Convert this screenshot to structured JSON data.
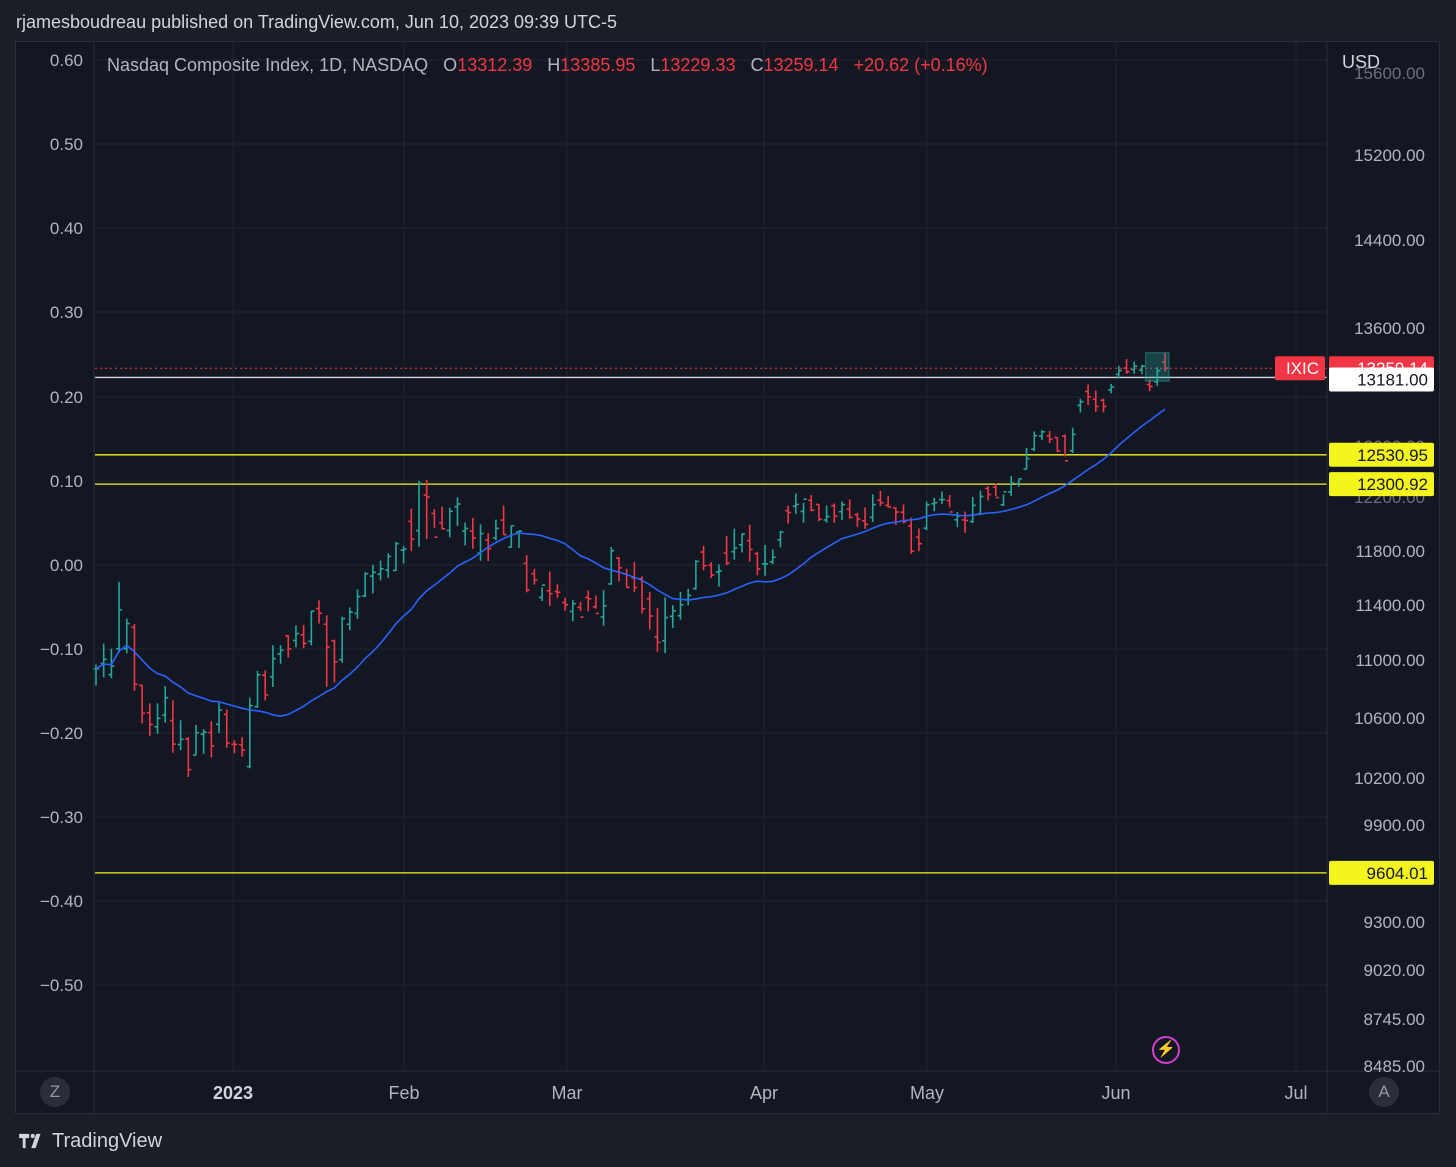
{
  "publisher_line": "rjamesboudreau published on TradingView.com, Jun 10, 2023 09:39 UTC-5",
  "brand": "TradingView",
  "header": {
    "symbol": "Nasdaq Composite Index, 1D, NASDAQ",
    "o_label": "O",
    "o_value": "13312.39",
    "h_label": "H",
    "h_value": "13385.95",
    "l_label": "L",
    "l_value": "13229.33",
    "c_label": "C",
    "c_value": "13259.14",
    "change": "+20.62 (+0.16%)"
  },
  "currency": "USD",
  "corner_left": "Z",
  "corner_right": "A",
  "colors": {
    "up": "#26a69a",
    "down": "#f23645",
    "ma": "#2962ff",
    "level": "#f5f51e",
    "grid": "#1f2430",
    "background": "#131722"
  },
  "chart_data": {
    "type": "ohlc",
    "title": "Nasdaq Composite Index, 1D, NASDAQ",
    "x_ticks": [
      {
        "label": "2023",
        "bold": true
      },
      {
        "label": "Feb"
      },
      {
        "label": "Mar"
      },
      {
        "label": "Apr"
      },
      {
        "label": "May"
      },
      {
        "label": "Jun"
      },
      {
        "label": "Jul"
      }
    ],
    "right_axis": {
      "ticks": [
        "15200.00",
        "14400.00",
        "13600.00",
        "11800.00",
        "11400.00",
        "11000.00",
        "10600.00",
        "10200.00",
        "9900.00",
        "9300.00",
        "9020.00",
        "8745.00",
        "8485.00"
      ],
      "partial_ticks": [
        "15600.00",
        "12600.00",
        "12200.00"
      ]
    },
    "left_axis": {
      "ticks": [
        "0.60",
        "0.50",
        "0.40",
        "0.30",
        "0.20",
        "0.10",
        "0.00",
        "−0.10",
        "−0.20",
        "−0.30",
        "−0.40",
        "−0.50"
      ]
    },
    "last_price": {
      "symbol": "IXIC",
      "value": "13259.14"
    },
    "levels": [
      {
        "value": "13181.00",
        "style": "white"
      },
      {
        "value": "12530.95",
        "style": "yellow"
      },
      {
        "value": "12300.92",
        "style": "yellow"
      },
      {
        "value": "9604.01",
        "style": "yellow"
      }
    ],
    "ohlc_series": [
      [
        10939,
        10969,
        10823,
        10939
      ],
      [
        10976,
        11120,
        10881,
        11005
      ],
      [
        10899,
        11082,
        10874,
        10958
      ],
      [
        11082,
        11571,
        11054,
        11365
      ],
      [
        11082,
        11301,
        11049,
        11265
      ],
      [
        11238,
        11262,
        10787,
        10832
      ],
      [
        10826,
        10827,
        10564,
        10633
      ],
      [
        10637,
        10701,
        10481,
        10557
      ],
      [
        10542,
        10701,
        10495,
        10598
      ],
      [
        10620,
        10819,
        10570,
        10740
      ],
      [
        10583,
        10722,
        10368,
        10426
      ],
      [
        10423,
        10585,
        10385,
        10458
      ],
      [
        10461,
        10472,
        10207,
        10256
      ],
      [
        10353,
        10554,
        10352,
        10502
      ],
      [
        10492,
        10525,
        10362,
        10505
      ],
      [
        10503,
        10579,
        10337,
        10414
      ],
      [
        10558,
        10705,
        10500,
        10654
      ],
      [
        10625,
        10658,
        10402,
        10433
      ],
      [
        10425,
        10452,
        10365,
        10424
      ],
      [
        10422,
        10472,
        10342,
        10386
      ],
      [
        10276,
        10741,
        10265,
        10685
      ],
      [
        10678,
        10925,
        10670,
        10898
      ],
      [
        10895,
        10928,
        10721,
        10759
      ],
      [
        10884,
        11108,
        10814,
        11010
      ],
      [
        11044,
        11108,
        10974,
        11071
      ],
      [
        11176,
        11182,
        11017,
        11081
      ],
      [
        11142,
        11251,
        11092,
        11192
      ],
      [
        11183,
        11255,
        11085,
        11121
      ],
      [
        11136,
        11358,
        11106,
        11355
      ],
      [
        11374,
        11435,
        11265,
        11340
      ],
      [
        11260,
        11325,
        10815,
        11095
      ],
      [
        11140,
        11148,
        10844,
        10987
      ],
      [
        11003,
        11315,
        10981,
        11301
      ],
      [
        11260,
        11382,
        11217,
        11349
      ],
      [
        11339,
        11516,
        11299,
        11462
      ],
      [
        11467,
        11643,
        11458,
        11632
      ],
      [
        11614,
        11698,
        11486,
        11642
      ],
      [
        11628,
        11729,
        11583,
        11668
      ],
      [
        11659,
        11783,
        11602,
        11760
      ],
      [
        11656,
        11866,
        11653,
        11854
      ],
      [
        11806,
        11836,
        11708,
        11814
      ],
      [
        12019,
        12113,
        11799,
        11888
      ],
      [
        11951,
        12327,
        11832,
        12306
      ],
      [
        12215,
        12332,
        11889,
        12201
      ],
      [
        12078,
        12110,
        11970,
        11902
      ],
      [
        12009,
        12129,
        11960,
        11965
      ],
      [
        11952,
        12121,
        11901,
        12094
      ],
      [
        12127,
        12197,
        11985,
        12148
      ],
      [
        11947,
        12011,
        11842,
        11967
      ],
      [
        11948,
        12045,
        11816,
        11895
      ],
      [
        11785,
        11998,
        11728,
        11929
      ],
      [
        11881,
        11932,
        11725,
        11818
      ],
      [
        11898,
        12032,
        11880,
        11967
      ],
      [
        12029,
        12137,
        11922,
        11921
      ],
      [
        11829,
        11990,
        11825,
        11987
      ],
      [
        11939,
        11952,
        11823,
        11948
      ],
      [
        11708,
        11770,
        11494,
        11510
      ],
      [
        11632,
        11667,
        11551,
        11587
      ],
      [
        11456,
        11530,
        11429,
        11547
      ],
      [
        11506,
        11648,
        11393,
        11484
      ],
      [
        11499,
        11553,
        11452,
        11494
      ],
      [
        11418,
        11455,
        11358,
        11402
      ],
      [
        11353,
        11436,
        11283,
        11410
      ],
      [
        11383,
        11422,
        11356,
        11312
      ],
      [
        11456,
        11508,
        11353,
        11446
      ],
      [
        11387,
        11470,
        11373,
        11339
      ],
      [
        11313,
        11509,
        11250,
        11394
      ],
      [
        11556,
        11830,
        11550,
        11802
      ],
      [
        11747,
        11754,
        11575,
        11676
      ],
      [
        11630,
        11669,
        11529,
        11530
      ],
      [
        11601,
        11716,
        11496,
        11530
      ],
      [
        11594,
        11612,
        11338,
        11372
      ],
      [
        11446,
        11496,
        11222,
        11320
      ],
      [
        11167,
        11377,
        11059,
        11129
      ],
      [
        11140,
        11456,
        11051,
        11309
      ],
      [
        11318,
        11399,
        11234,
        11357
      ],
      [
        11322,
        11497,
        11293,
        11401
      ],
      [
        11440,
        11519,
        11397,
        11471
      ],
      [
        11521,
        11731,
        11513,
        11723
      ],
      [
        11792,
        11838,
        11657,
        11691
      ],
      [
        11695,
        11717,
        11599,
        11623
      ],
      [
        11644,
        11701,
        11536,
        11652
      ],
      [
        11785,
        11912,
        11696,
        11711
      ],
      [
        11795,
        11965,
        11736,
        11822
      ],
      [
        11846,
        11930,
        11789,
        11927
      ],
      [
        11876,
        11996,
        11722,
        11812
      ],
      [
        11780,
        11793,
        11620,
        11667
      ],
      [
        11705,
        11845,
        11617,
        11705
      ],
      [
        11719,
        11813,
        11702,
        11754
      ],
      [
        11883,
        11949,
        11827,
        11940
      ],
      [
        12099,
        12137,
        12003,
        12085
      ],
      [
        12131,
        12227,
        12075,
        12145
      ],
      [
        12093,
        12157,
        12011,
        12184
      ],
      [
        12175,
        12215,
        12094,
        12102
      ],
      [
        12145,
        12146,
        12021,
        12036
      ],
      [
        12030,
        12137,
        12010,
        12055
      ],
      [
        12136,
        12152,
        12008,
        12059
      ],
      [
        12091,
        12167,
        12028,
        12144
      ],
      [
        12110,
        12183,
        12041,
        12049
      ],
      [
        12070,
        12082,
        11980,
        12037
      ],
      [
        12024,
        12123,
        11964,
        11997
      ],
      [
        12049,
        12221,
        12015,
        12144
      ],
      [
        12176,
        12248,
        12132,
        12157
      ],
      [
        12138,
        12208,
        12123,
        12126
      ],
      [
        12118,
        12124,
        11993,
        12088
      ],
      [
        12087,
        12145,
        12004,
        12017
      ],
      [
        11985,
        12047,
        11779,
        11799
      ],
      [
        11902,
        11967,
        11798,
        11854
      ],
      [
        11969,
        12166,
        11954,
        12142
      ],
      [
        12150,
        12194,
        12094,
        12158
      ],
      [
        12181,
        12243,
        12148,
        12181
      ],
      [
        12173,
        12216,
        12123,
        12089
      ],
      [
        12031,
        12089,
        11976,
        12061
      ],
      [
        12031,
        12092,
        11934,
        12026
      ],
      [
        12018,
        12200,
        12008,
        12138
      ],
      [
        12075,
        12251,
        12066,
        12204
      ],
      [
        12267,
        12285,
        12175,
        12219
      ],
      [
        12276,
        12306,
        12208,
        12196
      ],
      [
        12143,
        12219,
        12133,
        12241
      ],
      [
        12240,
        12364,
        12209,
        12309
      ],
      [
        12306,
        12343,
        12281,
        12343
      ],
      [
        12419,
        12586,
        12416,
        12501
      ],
      [
        12575,
        12723,
        12560,
        12688
      ],
      [
        12683,
        12734,
        12651,
        12720
      ],
      [
        12686,
        12727,
        12624,
        12657
      ],
      [
        12672,
        12673,
        12556,
        12560
      ],
      [
        12684,
        12698,
        12519,
        12484
      ],
      [
        12563,
        12755,
        12545,
        12698
      ],
      [
        12944,
        13000,
        12885,
        12975
      ],
      [
        13062,
        13123,
        12947,
        13017
      ],
      [
        12996,
        13070,
        12888,
        12935
      ],
      [
        12987,
        13001,
        12885,
        12935
      ],
      [
        13076,
        13127,
        13046,
        13101
      ],
      [
        13207,
        13279,
        13173,
        13240
      ],
      [
        13260,
        13337,
        13212,
        13229
      ],
      [
        13248,
        13315,
        13212,
        13276
      ],
      [
        13243,
        13287,
        13209,
        13276
      ],
      [
        13121,
        13161,
        13064,
        13104
      ],
      [
        13144,
        13267,
        13109,
        13238
      ],
      [
        13312,
        13386,
        13229,
        13259
      ]
    ],
    "ma_period": 20
  }
}
